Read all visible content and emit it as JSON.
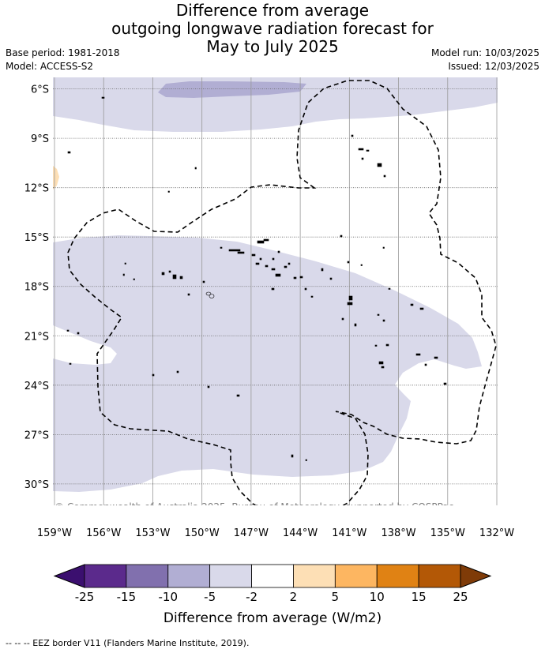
{
  "title": {
    "line1": "Difference from average",
    "line2": "outgoing longwave radiation forecast for",
    "line3": "May to July 2025"
  },
  "meta_left": {
    "base_period": "Base period: 1981-2018",
    "model": "Model: ACCESS-S2"
  },
  "meta_right": {
    "model_run": "Model run: 10/03/2025",
    "issued": "Issued: 12/03/2025"
  },
  "map": {
    "lon_range": [
      -159,
      -132
    ],
    "lat_range": [
      -31.3,
      -5.3
    ],
    "lat_ticks": [
      {
        "value": -6,
        "label": "6°S"
      },
      {
        "value": -9,
        "label": "9°S"
      },
      {
        "value": -12,
        "label": "12°S"
      },
      {
        "value": -15,
        "label": "15°S"
      },
      {
        "value": -18,
        "label": "18°S"
      },
      {
        "value": -21,
        "label": "21°S"
      },
      {
        "value": -24,
        "label": "24°S"
      },
      {
        "value": -27,
        "label": "27°S"
      },
      {
        "value": -30,
        "label": "30°S"
      }
    ],
    "lon_ticks": [
      {
        "value": -159,
        "label": "159°W"
      },
      {
        "value": -156,
        "label": "156°W"
      },
      {
        "value": -153,
        "label": "153°W"
      },
      {
        "value": -150,
        "label": "150°W"
      },
      {
        "value": -147,
        "label": "147°W"
      },
      {
        "value": -144,
        "label": "144°W"
      },
      {
        "value": -141,
        "label": "141°W"
      },
      {
        "value": -138,
        "label": "138°W"
      },
      {
        "value": -135,
        "label": "135°W"
      },
      {
        "value": -132,
        "label": "132°W"
      }
    ],
    "copyright": "© Commonwealth of Australia 2025, Bureau of Meteorology, supported by COSPPac",
    "colors": {
      "light_lavender": "#d9d9ea",
      "lavender": "#b1aed3",
      "light_orange": "#fddfb5"
    }
  },
  "colorbar": {
    "label": "Difference from average (W/m2)",
    "tick_labels": [
      "-25",
      "-15",
      "-10",
      "-5",
      "-2",
      "2",
      "5",
      "10",
      "15",
      "25"
    ],
    "colors": {
      "under": "#3b0f6f",
      "bins": [
        "#5b2a8c",
        "#8170ae",
        "#b1aed3",
        "#d9d9ea",
        "#ffffff",
        "#fddfb5",
        "#fdb661",
        "#e08214",
        "#b35806"
      ],
      "over": "#7f3b08"
    }
  },
  "footer": "-- -- -- EEZ border V11 (Flanders Marine Institute, 2019)."
}
